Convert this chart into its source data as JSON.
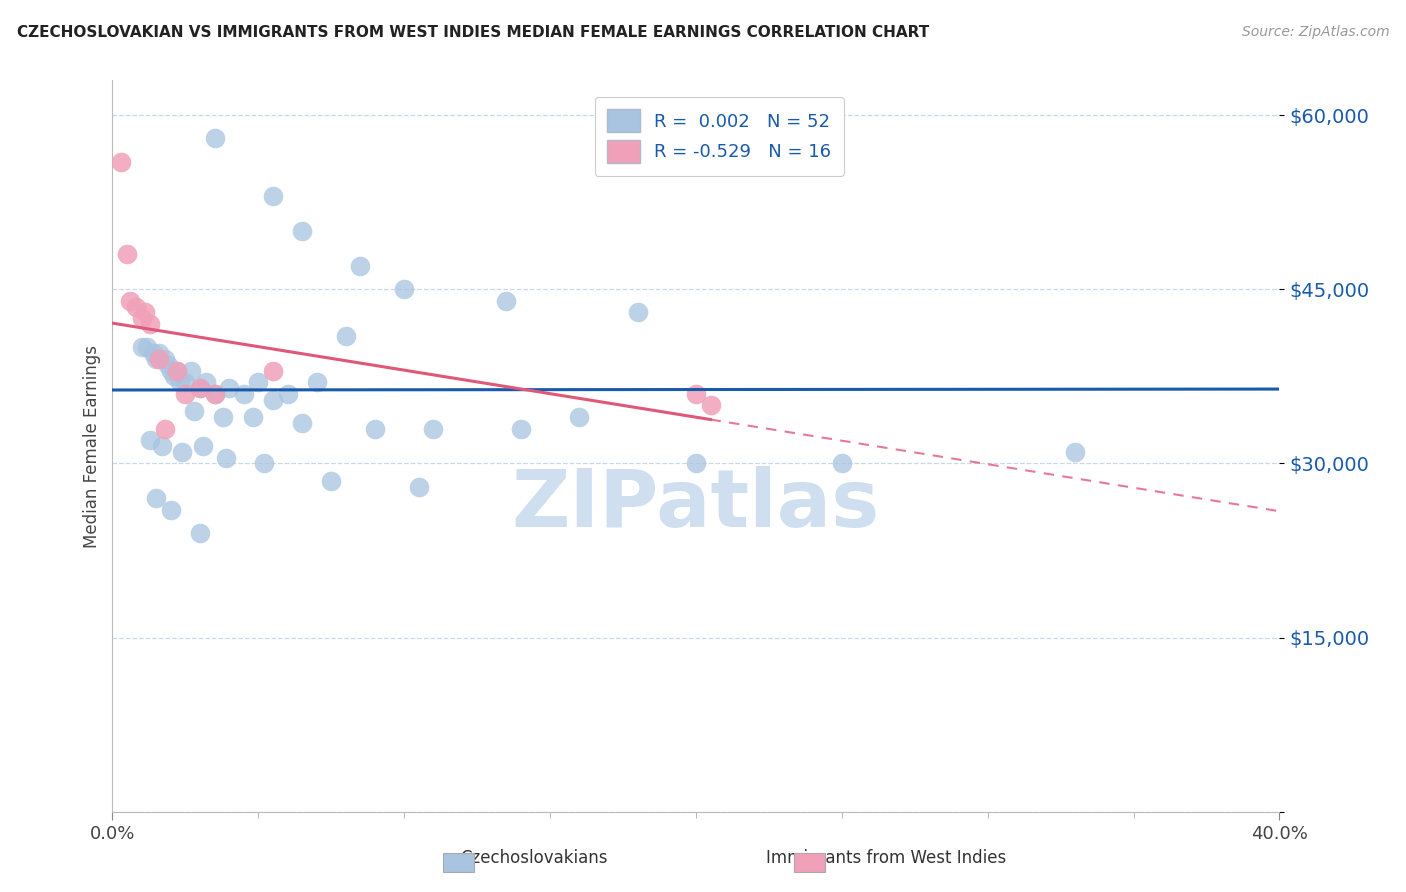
{
  "title": "CZECHOSLOVAKIAN VS IMMIGRANTS FROM WEST INDIES MEDIAN FEMALE EARNINGS CORRELATION CHART",
  "source": "Source: ZipAtlas.com",
  "ylabel": "Median Female Earnings",
  "yticks": [
    0,
    15000,
    30000,
    45000,
    60000
  ],
  "ytick_labels": [
    "",
    "$15,000",
    "$30,000",
    "$45,000",
    "$60,000"
  ],
  "xlim": [
    0.0,
    40.0
  ],
  "ylim": [
    0,
    63000
  ],
  "blue_color": "#a8c4e0",
  "pink_color": "#f0a0b8",
  "blue_line_color": "#1a5aaa",
  "pink_line_color": "#e05878",
  "watermark_color": "#d0dff0",
  "blue_x": [
    3.5,
    5.5,
    6.5,
    8.5,
    10.0,
    13.5,
    18.0,
    1.0,
    1.2,
    1.4,
    1.5,
    1.6,
    1.8,
    1.9,
    2.0,
    2.1,
    2.2,
    2.3,
    2.5,
    2.7,
    3.0,
    3.2,
    3.5,
    4.0,
    4.5,
    5.0,
    5.5,
    6.0,
    7.0,
    8.0,
    2.8,
    3.8,
    4.8,
    6.5,
    9.0,
    11.0,
    14.0,
    16.0,
    1.3,
    1.7,
    2.4,
    3.1,
    3.9,
    5.2,
    7.5,
    10.5,
    20.0,
    25.0,
    33.0,
    1.5,
    2.0,
    3.0
  ],
  "blue_y": [
    58000,
    53000,
    50000,
    47000,
    45000,
    44000,
    43000,
    40000,
    40000,
    39500,
    39000,
    39500,
    39000,
    38500,
    38000,
    37500,
    38000,
    37000,
    37000,
    38000,
    36500,
    37000,
    36000,
    36500,
    36000,
    37000,
    35500,
    36000,
    37000,
    41000,
    34500,
    34000,
    34000,
    33500,
    33000,
    33000,
    33000,
    34000,
    32000,
    31500,
    31000,
    31500,
    30500,
    30000,
    28500,
    28000,
    30000,
    30000,
    31000,
    27000,
    26000,
    24000
  ],
  "pink_x": [
    0.3,
    0.5,
    0.6,
    0.8,
    1.0,
    1.1,
    1.3,
    1.6,
    2.2,
    2.5,
    3.5,
    20.0,
    20.5,
    3.0,
    1.8,
    5.5
  ],
  "pink_y": [
    56000,
    48000,
    44000,
    43500,
    42500,
    43000,
    42000,
    39000,
    38000,
    36000,
    36000,
    36000,
    35000,
    36500,
    33000,
    38000
  ],
  "blue_flat_y": 37000,
  "pink_slope": -500,
  "pink_intercept": 44000
}
